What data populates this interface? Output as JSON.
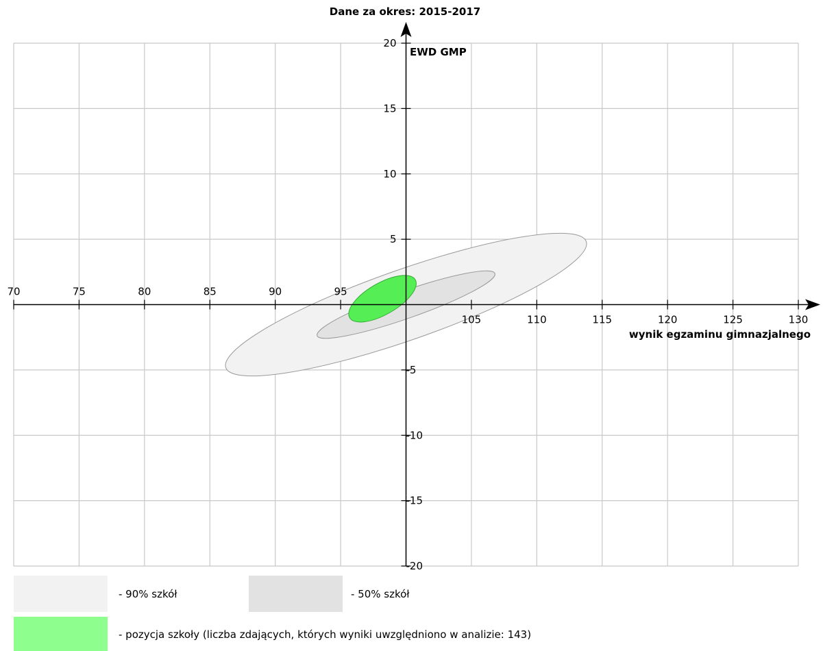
{
  "chart_data": {
    "type": "scatter",
    "title": "Dane za okres: 2015-2017",
    "xlabel": "wynik egzaminu gimnazjalnego",
    "ylabel": "EWD GMP",
    "xlim": [
      70,
      130
    ],
    "ylim": [
      -20,
      20
    ],
    "x_ticks": [
      70,
      75,
      80,
      85,
      90,
      95,
      105,
      110,
      115,
      120,
      125,
      130
    ],
    "y_ticks": [
      -20,
      -15,
      -10,
      -5,
      5,
      10,
      15,
      20
    ],
    "x_grid": [
      70,
      75,
      80,
      85,
      90,
      95,
      100,
      105,
      110,
      115,
      120,
      125,
      130
    ],
    "y_grid": [
      -20,
      -15,
      -10,
      -5,
      0,
      5,
      10,
      15,
      20
    ],
    "grid": true,
    "ellipses": [
      {
        "name": "90% szkół",
        "cx": 100.0,
        "cy": 0.0,
        "semi_major_x": 14.6,
        "semi_minor_x": 2.7,
        "angle_deg": 19.3,
        "fill": "#f2f2f2",
        "stroke": "#999999"
      },
      {
        "name": "50% szkół",
        "cx": 100.0,
        "cy": 0.0,
        "semi_major_x": 7.2,
        "semi_minor_x": 1.05,
        "angle_deg": 19.3,
        "fill": "#e2e2e2",
        "stroke": "#999999"
      },
      {
        "name": "pozycja szkoły",
        "cx": 98.2,
        "cy": 0.45,
        "semi_major_x": 2.9,
        "semi_minor_x": 1.2,
        "angle_deg": 30,
        "fill": "#55ee55",
        "stroke": "#33aa33"
      }
    ]
  },
  "legend": {
    "items": [
      {
        "label": "- 90% szkół",
        "color": "#f2f2f2"
      },
      {
        "label": "- 50% szkół",
        "color": "#e2e2e2"
      },
      {
        "label": "- pozycja szkoły (liczba zdających, których wyniki uwzględniono w analizie: 143)",
        "color": "#8eff8e"
      }
    ]
  }
}
